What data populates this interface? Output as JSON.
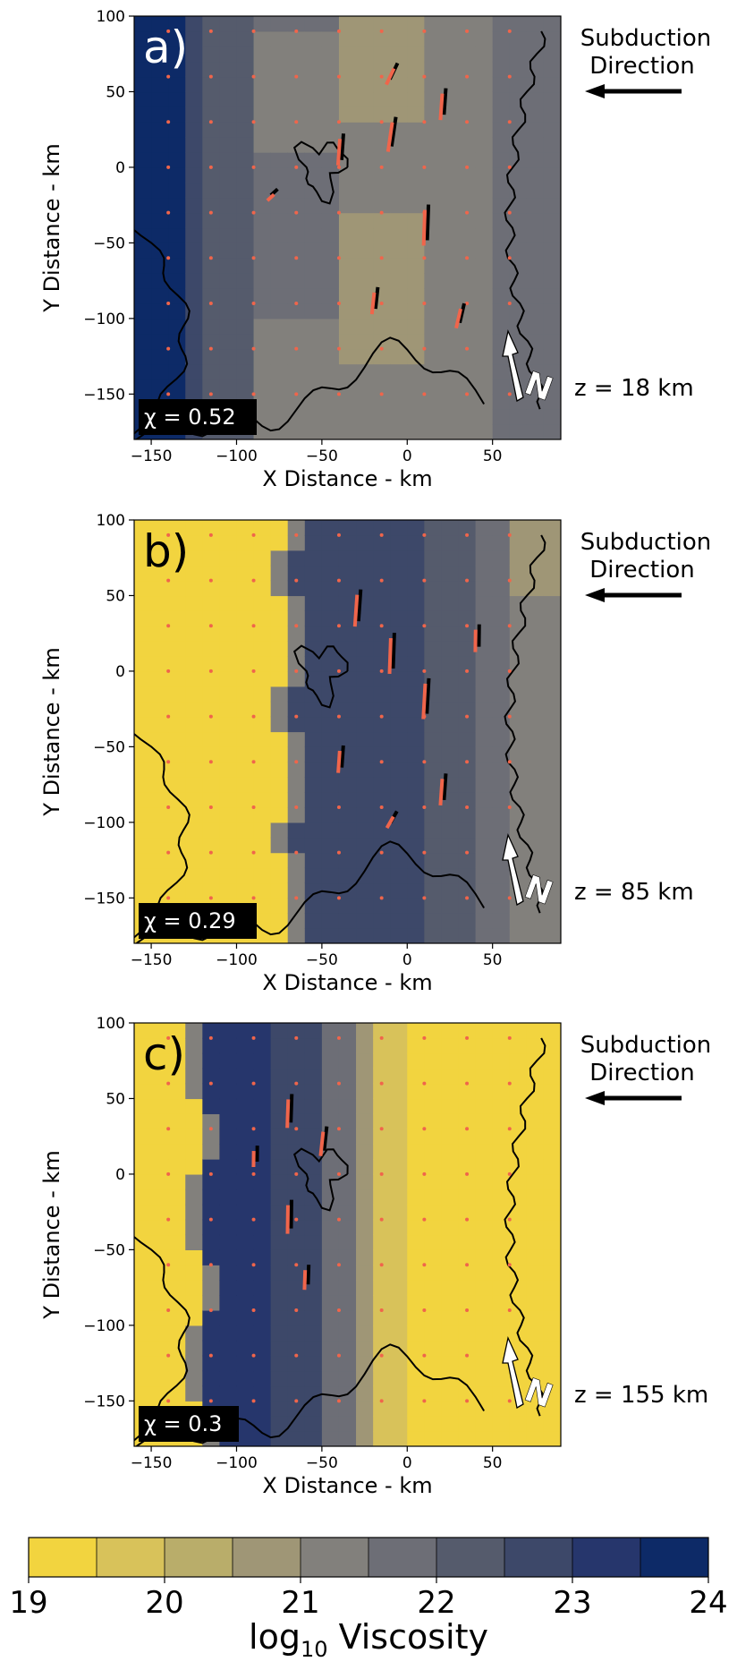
{
  "chart_data": [
    {
      "type": "heatmap",
      "panel_label": "a)",
      "xlabel": "X Distance - km",
      "ylabel": "Y Distance - km",
      "xlim": [
        -160,
        90
      ],
      "ylim": [
        -180,
        100
      ],
      "xticks": [
        -150,
        -100,
        -50,
        0,
        50
      ],
      "yticks": [
        -150,
        -100,
        -50,
        0,
        50,
        100
      ],
      "chi_label": "χ = 0.52",
      "depth_label": "z = 18 km",
      "arrow_label": "Subduction\nDirection",
      "north_label": "N",
      "viscosity_regime": "mostly viscous (log10 ~21–23)",
      "contours_present": true,
      "anisotropy_markers_present": true
    },
    {
      "type": "heatmap",
      "panel_label": "b)",
      "xlabel": "X Distance - km",
      "ylabel": "Y Distance - km",
      "xlim": [
        -160,
        90
      ],
      "ylim": [
        -180,
        100
      ],
      "xticks": [
        -150,
        -100,
        -50,
        0,
        50
      ],
      "yticks": [
        -150,
        -100,
        -50,
        0,
        50,
        100
      ],
      "chi_label": "χ = 0.29",
      "depth_label": "z = 85 km",
      "arrow_label": "Subduction\nDirection",
      "north_label": "N",
      "viscosity_regime": "low on west (~19), high east (~21–23)",
      "contours_present": true,
      "anisotropy_markers_present": true
    },
    {
      "type": "heatmap",
      "panel_label": "c)",
      "xlabel": "X Distance - km",
      "ylabel": "Y Distance - km",
      "xlim": [
        -160,
        90
      ],
      "ylim": [
        -180,
        100
      ],
      "xticks": [
        -150,
        -100,
        -50,
        0,
        50
      ],
      "yticks": [
        -150,
        -100,
        -50,
        0,
        50,
        100
      ],
      "chi_label": "χ = 0.3",
      "depth_label": "z = 155 km",
      "arrow_label": "Subduction\nDirection",
      "north_label": "N",
      "viscosity_regime": "low everywhere except a viscous band near x≈-100 to -50",
      "contours_present": true,
      "anisotropy_markers_present": true
    }
  ],
  "colorbar": {
    "label": "log10 Viscosity",
    "ticks": [
      19,
      20,
      21,
      22,
      23,
      24
    ],
    "colors": [
      "#f2d43f",
      "#d8c25a",
      "#b9ad6a",
      "#9f9676",
      "#82807c",
      "#6d6e76",
      "#555b6c",
      "#3d4869",
      "#26366c",
      "#0d2a67"
    ]
  }
}
